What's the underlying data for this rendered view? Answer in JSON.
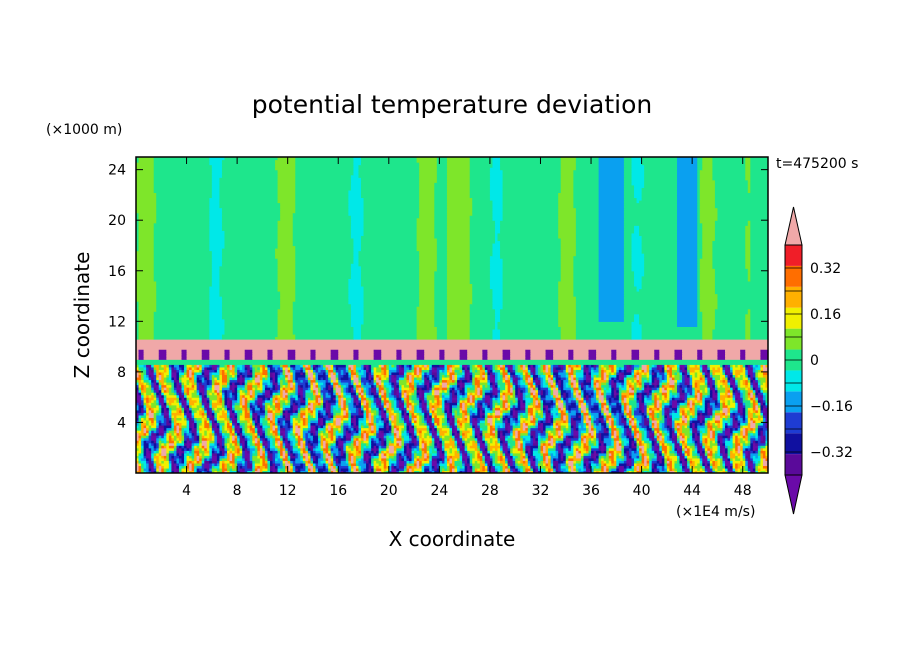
{
  "chart_data": {
    "type": "heatmap",
    "title": "potential temperature deviation",
    "xlabel": "X coordinate",
    "ylabel": "Z coordinate",
    "x_unit": "(×1E4 m/s)",
    "y_unit": "(×1000 m)",
    "time_label": "t=475200 s",
    "xlim": [
      0,
      50
    ],
    "ylim": [
      0,
      25
    ],
    "x_ticks": [
      4,
      8,
      12,
      16,
      20,
      24,
      28,
      32,
      36,
      40,
      44,
      48
    ],
    "y_ticks": [
      4,
      8,
      12,
      16,
      20,
      24
    ],
    "colorbar": {
      "levels": [
        -0.4,
        -0.32,
        -0.24,
        -0.16,
        -0.08,
        0,
        0.08,
        0.16,
        0.24,
        0.32,
        0.4
      ],
      "tick_labels": [
        "0.32",
        "0.16",
        "0",
        "−0.16",
        "−0.32"
      ],
      "tick_values": [
        0.32,
        0.16,
        0,
        -0.16,
        -0.32
      ],
      "colors": [
        "#5a0a9a",
        "#1010a0",
        "#1e3cd2",
        "#0aa0f0",
        "#00e8e8",
        "#1ee68c",
        "#7ee62a",
        "#f0f000",
        "#ffb000",
        "#ff6e00",
        "#f01e28"
      ],
      "over_color": "#f0a8a8",
      "under_color": "#6a0aa8"
    },
    "layers": [
      {
        "z_range": [
          10.5,
          25
        ],
        "pattern": "vertical streaks, mostly 0 to 0.08"
      },
      {
        "z_range": [
          9,
          10.5
        ],
        "value": "above 0.4"
      },
      {
        "z_range": [
          0,
          9
        ],
        "pattern": "turbulent mix of -0.4 to 0.4"
      }
    ]
  }
}
